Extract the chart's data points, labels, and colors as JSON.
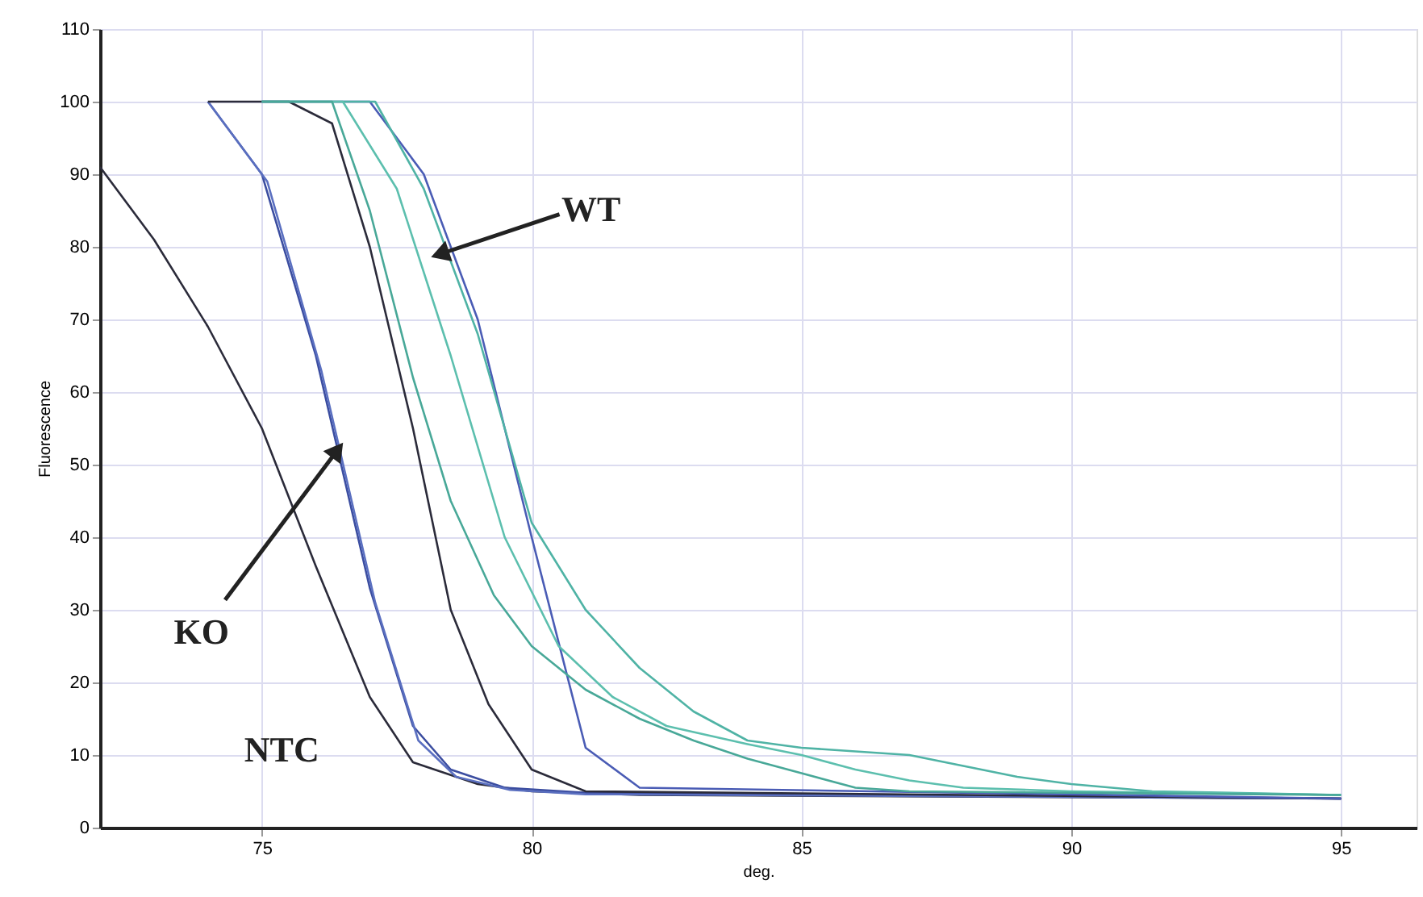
{
  "chart_data": {
    "type": "line",
    "xlabel": "deg.",
    "ylabel": "Fluorescence",
    "xlim": [
      72,
      96.4
    ],
    "ylim": [
      0,
      110
    ],
    "xticks": [
      75,
      80,
      85,
      90,
      95
    ],
    "yticks": [
      0,
      10,
      20,
      30,
      40,
      50,
      60,
      70,
      80,
      90,
      100,
      110
    ],
    "grid": true,
    "marker": "none",
    "line_style": "solid",
    "series": [
      {
        "color": "#2b2b3a",
        "x": [
          72,
          73,
          74,
          75,
          76,
          77,
          77.8,
          79,
          80,
          82,
          95
        ],
        "values": [
          91,
          81,
          69,
          55,
          36,
          18,
          9,
          6,
          5,
          4.5,
          4
        ]
      },
      {
        "color": "#3b4da0",
        "x": [
          74,
          75,
          76,
          77,
          77.8,
          78.5,
          79.5,
          81,
          95
        ],
        "values": [
          100,
          90,
          65,
          33,
          14,
          8,
          5.5,
          4.8,
          4
        ]
      },
      {
        "color": "#5a6fc0",
        "x": [
          74,
          75.1,
          76.1,
          77.1,
          77.9,
          78.6,
          79.6,
          81,
          95
        ],
        "values": [
          100,
          89,
          63,
          31,
          12,
          7,
          5.2,
          4.6,
          4
        ]
      },
      {
        "color": "#2b2b3a",
        "x": [
          74,
          75.5,
          76.3,
          77,
          77.8,
          78.5,
          79.2,
          80,
          81,
          95
        ],
        "values": [
          100,
          100,
          97,
          80,
          55,
          30,
          17,
          8,
          5,
          4
        ]
      },
      {
        "color": "#4a5cb5",
        "x": [
          75,
          77,
          78,
          79,
          80,
          81,
          82,
          95
        ],
        "values": [
          100,
          100,
          90,
          70,
          40,
          11,
          5.5,
          4
        ]
      },
      {
        "color": "#4fb3a5",
        "x": [
          75,
          77.1,
          78,
          79,
          80,
          81,
          82,
          83,
          84,
          85,
          86,
          87,
          88,
          89,
          90,
          91.5,
          95
        ],
        "values": [
          100,
          100,
          88,
          68,
          42,
          30,
          22,
          16,
          12,
          11,
          10.5,
          10,
          8.5,
          7,
          6,
          5,
          4.5
        ]
      },
      {
        "color": "#5cbfae",
        "x": [
          75,
          76.5,
          77.5,
          78.5,
          79.5,
          80.5,
          81.5,
          82.5,
          84,
          85,
          86,
          87,
          88,
          90,
          95
        ],
        "values": [
          100,
          100,
          88,
          65,
          40,
          25,
          18,
          14,
          11.5,
          10,
          8,
          6.5,
          5.5,
          5,
          4.5
        ]
      },
      {
        "color": "#48a898",
        "x": [
          75,
          76.3,
          77,
          77.8,
          78.5,
          79.3,
          80,
          81,
          82,
          83,
          84,
          85,
          86,
          87,
          95
        ],
        "values": [
          100,
          100,
          85,
          62,
          45,
          32,
          25,
          19,
          15,
          12,
          9.5,
          7.5,
          5.5,
          5,
          4.5
        ]
      }
    ],
    "annotations": [
      {
        "text": "WT",
        "x": 78.3,
        "y": 79
      },
      {
        "text": "KO",
        "x": 76.4,
        "y": 52
      },
      "NTC"
    ]
  }
}
